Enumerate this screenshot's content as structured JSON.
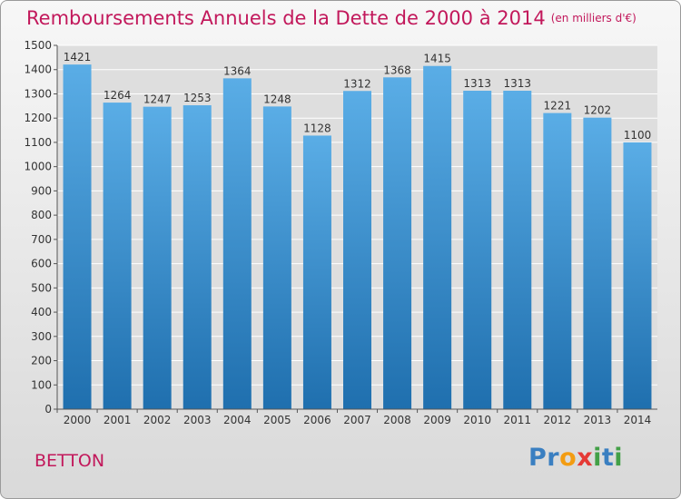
{
  "title": "Remboursements Annuels de la Dette de 2000 à 2014",
  "unit_note": "(en milliers d'€)",
  "city": "BETTON",
  "logo": {
    "text": "Proxiti",
    "letters": [
      {
        "ch": "P",
        "color": "#3a7fc1"
      },
      {
        "ch": "r",
        "color": "#3a7fc1"
      },
      {
        "ch": "o",
        "color": "#f39c12"
      },
      {
        "ch": "x",
        "color": "#e53935"
      },
      {
        "ch": "i",
        "color": "#43a047"
      },
      {
        "ch": "t",
        "color": "#3a7fc1"
      },
      {
        "ch": "i",
        "color": "#43a047"
      }
    ]
  },
  "colors": {
    "title": "#c2185b",
    "bar_top": "#5aade6",
    "bar_bottom": "#1f6fae",
    "grid": "#ffffff",
    "axis_text": "#333333"
  },
  "chart_data": {
    "type": "bar",
    "categories": [
      "2000",
      "2001",
      "2002",
      "2003",
      "2004",
      "2005",
      "2006",
      "2007",
      "2008",
      "2009",
      "2010",
      "2011",
      "2012",
      "2013",
      "2014"
    ],
    "values": [
      1421,
      1264,
      1247,
      1253,
      1364,
      1248,
      1128,
      1312,
      1368,
      1415,
      1313,
      1313,
      1221,
      1202,
      1100
    ],
    "title": "Remboursements Annuels de la Dette de 2000 à 2014",
    "ylim": [
      0,
      1500
    ],
    "yticks": [
      0,
      100,
      200,
      300,
      400,
      500,
      600,
      700,
      800,
      900,
      1000,
      1100,
      1200,
      1300,
      1400,
      1500
    ],
    "grid": true,
    "data_labels": true
  }
}
